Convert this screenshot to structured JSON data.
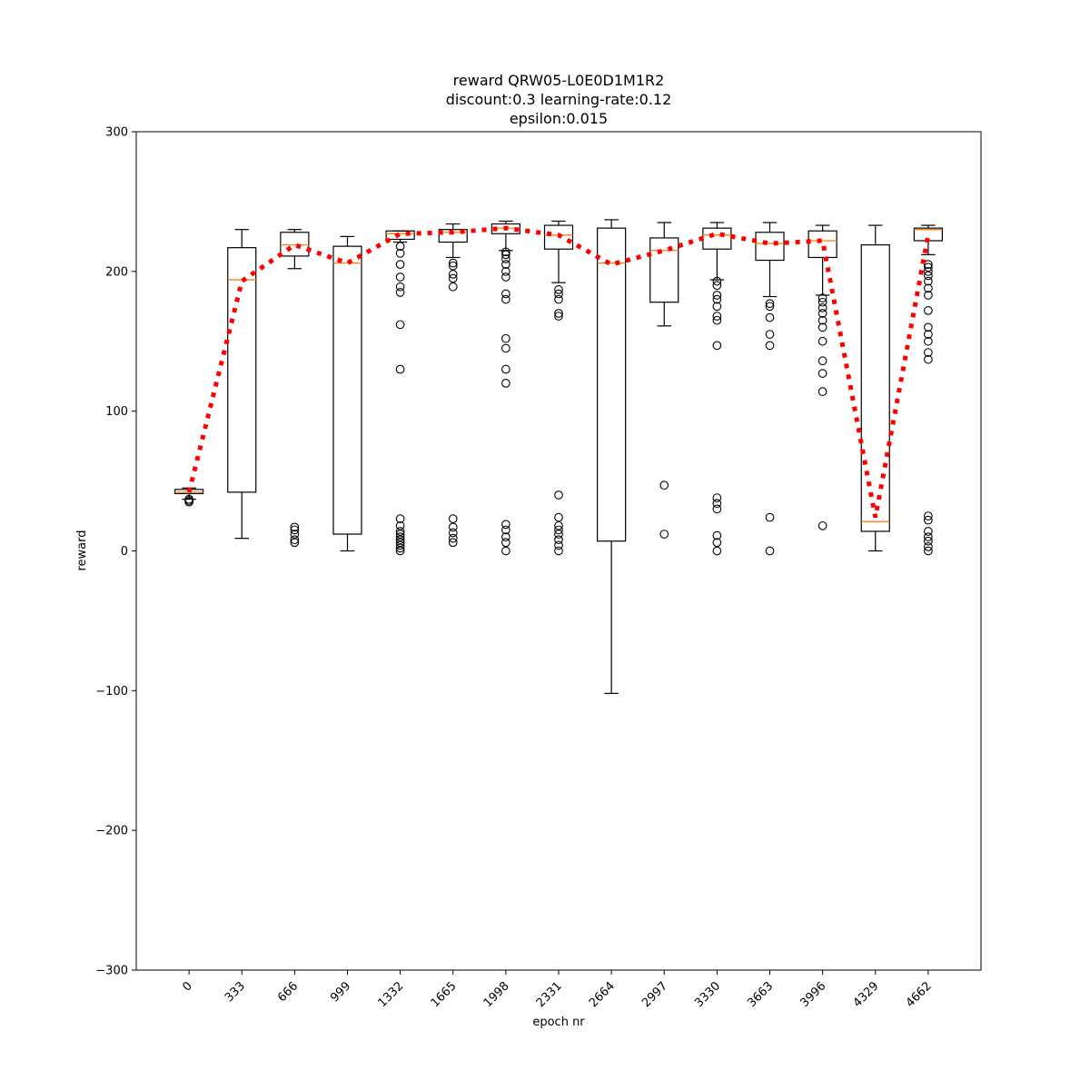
{
  "chart_data": {
    "type": "box",
    "title_lines": [
      "reward QRW05-L0E0D1M1R2",
      "discount:0.3 learning-rate:0.12",
      "epsilon:0.015"
    ],
    "xlabel": "epoch nr",
    "ylabel": "reward",
    "ylim": [
      -300,
      300
    ],
    "yticks": [
      -300,
      -200,
      -100,
      0,
      100,
      200,
      300
    ],
    "categories": [
      "0",
      "333",
      "666",
      "999",
      "1332",
      "1665",
      "1998",
      "2331",
      "2664",
      "2997",
      "3330",
      "3663",
      "3996",
      "4329",
      "4662"
    ],
    "boxes": [
      {
        "q1": 41,
        "median": 42,
        "q3": 44,
        "whisker_low": 37,
        "whisker_high": 45,
        "outliers": [
          35,
          36,
          37
        ]
      },
      {
        "q1": 42,
        "median": 194,
        "q3": 217,
        "whisker_low": 9,
        "whisker_high": 230,
        "outliers": []
      },
      {
        "q1": 211,
        "median": 219,
        "q3": 228,
        "whisker_low": 202,
        "whisker_high": 230,
        "outliers": [
          6,
          8,
          12,
          15,
          17
        ]
      },
      {
        "q1": 12,
        "median": 206,
        "q3": 218,
        "whisker_low": 0,
        "whisker_high": 225,
        "outliers": []
      },
      {
        "q1": 223,
        "median": 227,
        "q3": 229,
        "whisker_low": 221,
        "whisker_high": 229,
        "outliers": [
          0,
          2,
          4,
          6,
          8,
          10,
          12,
          14,
          18,
          23,
          130,
          162,
          185,
          189,
          196,
          205,
          213,
          218
        ]
      },
      {
        "q1": 221,
        "median": 228,
        "q3": 230,
        "whisker_low": 210,
        "whisker_high": 234,
        "outliers": [
          6,
          9,
          13,
          17,
          23,
          189,
          195,
          198,
          204,
          206
        ]
      },
      {
        "q1": 227,
        "median": 231,
        "q3": 234,
        "whisker_low": 215,
        "whisker_high": 236,
        "outliers": [
          0,
          6,
          10,
          15,
          19,
          120,
          130,
          145,
          152,
          180,
          184,
          196,
          200,
          205,
          209,
          212,
          214
        ]
      },
      {
        "q1": 216,
        "median": 226,
        "q3": 233,
        "whisker_low": 192,
        "whisker_high": 236,
        "outliers": [
          0,
          4,
          8,
          12,
          15,
          18,
          24,
          40,
          168,
          170,
          180,
          184,
          187
        ]
      },
      {
        "q1": 7,
        "median": 206,
        "q3": 231,
        "whisker_low": -102,
        "whisker_high": 237,
        "outliers": []
      },
      {
        "q1": 178,
        "median": 215,
        "q3": 224,
        "whisker_low": 161,
        "whisker_high": 235,
        "outliers": [
          12,
          47
        ]
      },
      {
        "q1": 216,
        "median": 226,
        "q3": 231,
        "whisker_low": 194,
        "whisker_high": 235,
        "outliers": [
          0,
          6,
          11,
          30,
          34,
          38,
          147,
          165,
          168,
          175,
          180,
          183,
          190,
          193
        ]
      },
      {
        "q1": 208,
        "median": 220,
        "q3": 228,
        "whisker_low": 182,
        "whisker_high": 235,
        "outliers": [
          0,
          24,
          147,
          155,
          167,
          175,
          177
        ]
      },
      {
        "q1": 210,
        "median": 222,
        "q3": 229,
        "whisker_low": 183,
        "whisker_high": 233,
        "outliers": [
          18,
          114,
          127,
          136,
          150,
          160,
          165,
          170,
          174,
          178,
          181
        ]
      },
      {
        "q1": 14,
        "median": 21,
        "q3": 219,
        "whisker_low": 0,
        "whisker_high": 233,
        "outliers": []
      },
      {
        "q1": 222,
        "median": 230,
        "q3": 231,
        "whisker_low": 212,
        "whisker_high": 233,
        "outliers": [
          0,
          3,
          7,
          10,
          14,
          22,
          25,
          137,
          142,
          150,
          155,
          160,
          172,
          183,
          188,
          193,
          197,
          200,
          203,
          205
        ]
      }
    ],
    "mean_line": {
      "values": [
        42,
        193,
        219,
        206,
        227,
        228,
        231,
        226,
        205,
        215,
        227,
        220,
        222,
        24,
        226
      ],
      "color": "#ff0000",
      "style": "dotted"
    },
    "box_color": "#000000",
    "median_color": "#ff7f0e",
    "grid": false,
    "legend": "none"
  }
}
